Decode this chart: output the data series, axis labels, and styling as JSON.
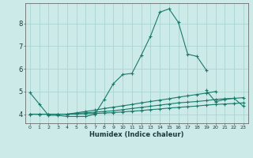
{
  "xlabel": "Humidex (Indice chaleur)",
  "background_color": "#cceae8",
  "grid_color": "#aad4d0",
  "line_color": "#1a7a6a",
  "x_ticks": [
    0,
    1,
    2,
    3,
    4,
    5,
    6,
    7,
    8,
    9,
    10,
    11,
    12,
    13,
    14,
    15,
    16,
    17,
    18,
    19,
    20,
    21,
    22,
    23
  ],
  "y_ticks": [
    4,
    5,
    6,
    7,
    8
  ],
  "ylim": [
    3.6,
    8.9
  ],
  "xlim": [
    -0.5,
    23.5
  ],
  "series": [
    [
      4.95,
      4.45,
      3.95,
      3.95,
      3.9,
      3.9,
      3.9,
      4.0,
      4.65,
      5.35,
      5.75,
      5.8,
      6.6,
      7.45,
      8.5,
      8.65,
      8.05,
      6.65,
      6.55,
      5.95,
      null,
      null,
      null,
      null
    ],
    [
      null,
      null,
      null,
      null,
      null,
      null,
      null,
      null,
      null,
      null,
      null,
      null,
      null,
      null,
      null,
      null,
      null,
      null,
      null,
      5.05,
      4.55,
      4.65,
      4.7,
      4.35
    ],
    [
      4.0,
      4.0,
      4.0,
      4.0,
      4.0,
      4.06,
      4.12,
      4.18,
      4.25,
      4.31,
      4.37,
      4.43,
      4.5,
      4.56,
      4.62,
      4.68,
      4.75,
      4.81,
      4.87,
      4.93,
      5.0,
      null,
      null,
      null
    ],
    [
      4.0,
      4.0,
      4.0,
      4.0,
      4.0,
      4.03,
      4.06,
      4.09,
      4.12,
      4.15,
      4.2,
      4.25,
      4.3,
      4.35,
      4.4,
      4.45,
      4.5,
      4.53,
      4.56,
      4.6,
      4.65,
      4.68,
      4.7,
      4.73
    ],
    [
      4.0,
      4.0,
      4.0,
      4.0,
      4.0,
      4.01,
      4.02,
      4.03,
      4.05,
      4.07,
      4.1,
      4.13,
      4.16,
      4.2,
      4.23,
      4.27,
      4.3,
      4.33,
      4.36,
      4.4,
      4.43,
      4.45,
      4.47,
      4.5
    ]
  ]
}
